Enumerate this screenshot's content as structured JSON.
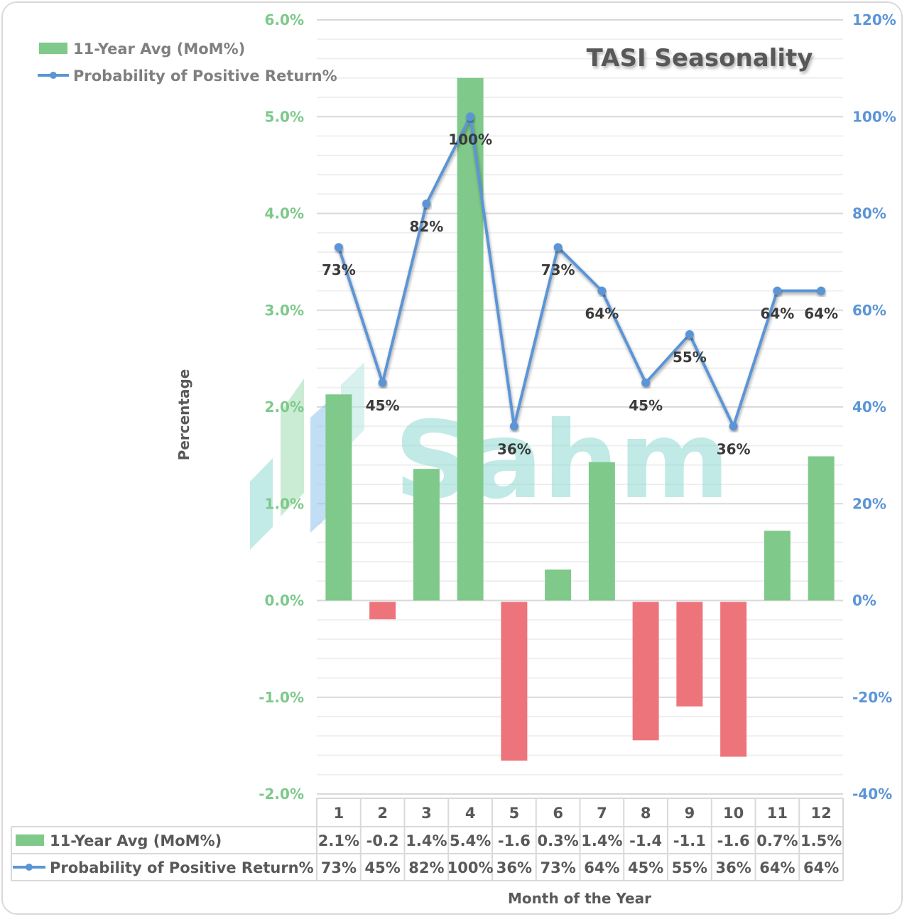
{
  "chart_data": {
    "type": "bar",
    "title": "TASI Seasonality",
    "xlabel": "Month of the Year",
    "ylabel": "Percentage",
    "categories": [
      "1",
      "2",
      "3",
      "4",
      "5",
      "6",
      "7",
      "8",
      "9",
      "10",
      "11",
      "12"
    ],
    "series": [
      {
        "name": "11-Year Avg (MoM%)",
        "type": "bar",
        "axis": "left",
        "values": [
          2.13,
          -0.18,
          1.36,
          5.4,
          -1.64,
          0.32,
          1.43,
          -1.43,
          -1.08,
          -1.6,
          0.72,
          1.49
        ],
        "table_labels": [
          "2.1%",
          "-0.2",
          "1.4%",
          "5.4%",
          "-1.6",
          "0.3%",
          "1.4%",
          "-1.4",
          "-1.1",
          "-1.6",
          "0.7%",
          "1.5%"
        ],
        "positive_color": "#7fc98a",
        "negative_color": "#ee747c"
      },
      {
        "name": "Probability of Positive Return%",
        "type": "line",
        "axis": "right",
        "values": [
          73,
          45,
          82,
          100,
          36,
          73,
          64,
          45,
          55,
          36,
          64,
          64
        ],
        "data_labels": [
          "73%",
          "45%",
          "82%",
          "100%",
          "36%",
          "73%",
          "64%",
          "45%",
          "55%",
          "36%",
          "64%",
          "64%"
        ],
        "color": "#5b95d6"
      }
    ],
    "left_axis": {
      "ylim": [
        -2.0,
        6.0
      ],
      "ticks": [
        -2.0,
        -1.0,
        0.0,
        1.0,
        2.0,
        3.0,
        4.0,
        5.0,
        6.0
      ],
      "tick_labels": [
        "-2.0%",
        "-1.0%",
        "0.0%",
        "1.0%",
        "2.0%",
        "3.0%",
        "4.0%",
        "5.0%",
        "6.0%"
      ],
      "color": "#7dc98a"
    },
    "right_axis": {
      "ylim": [
        -40,
        120
      ],
      "ticks": [
        -40,
        -20,
        0,
        20,
        40,
        60,
        80,
        100,
        120
      ],
      "tick_labels": [
        "-40%",
        "-20%",
        "0%",
        "20%",
        "40%",
        "60%",
        "80%",
        "100%",
        "120%"
      ],
      "color": "#5b95d6"
    },
    "grid": true,
    "legend": {
      "placement": "top-left",
      "entries": [
        "11-Year Avg (MoM%)",
        "Probability of Positive Return%"
      ]
    },
    "data_table": true
  },
  "watermark": {
    "text": "Sahm"
  }
}
